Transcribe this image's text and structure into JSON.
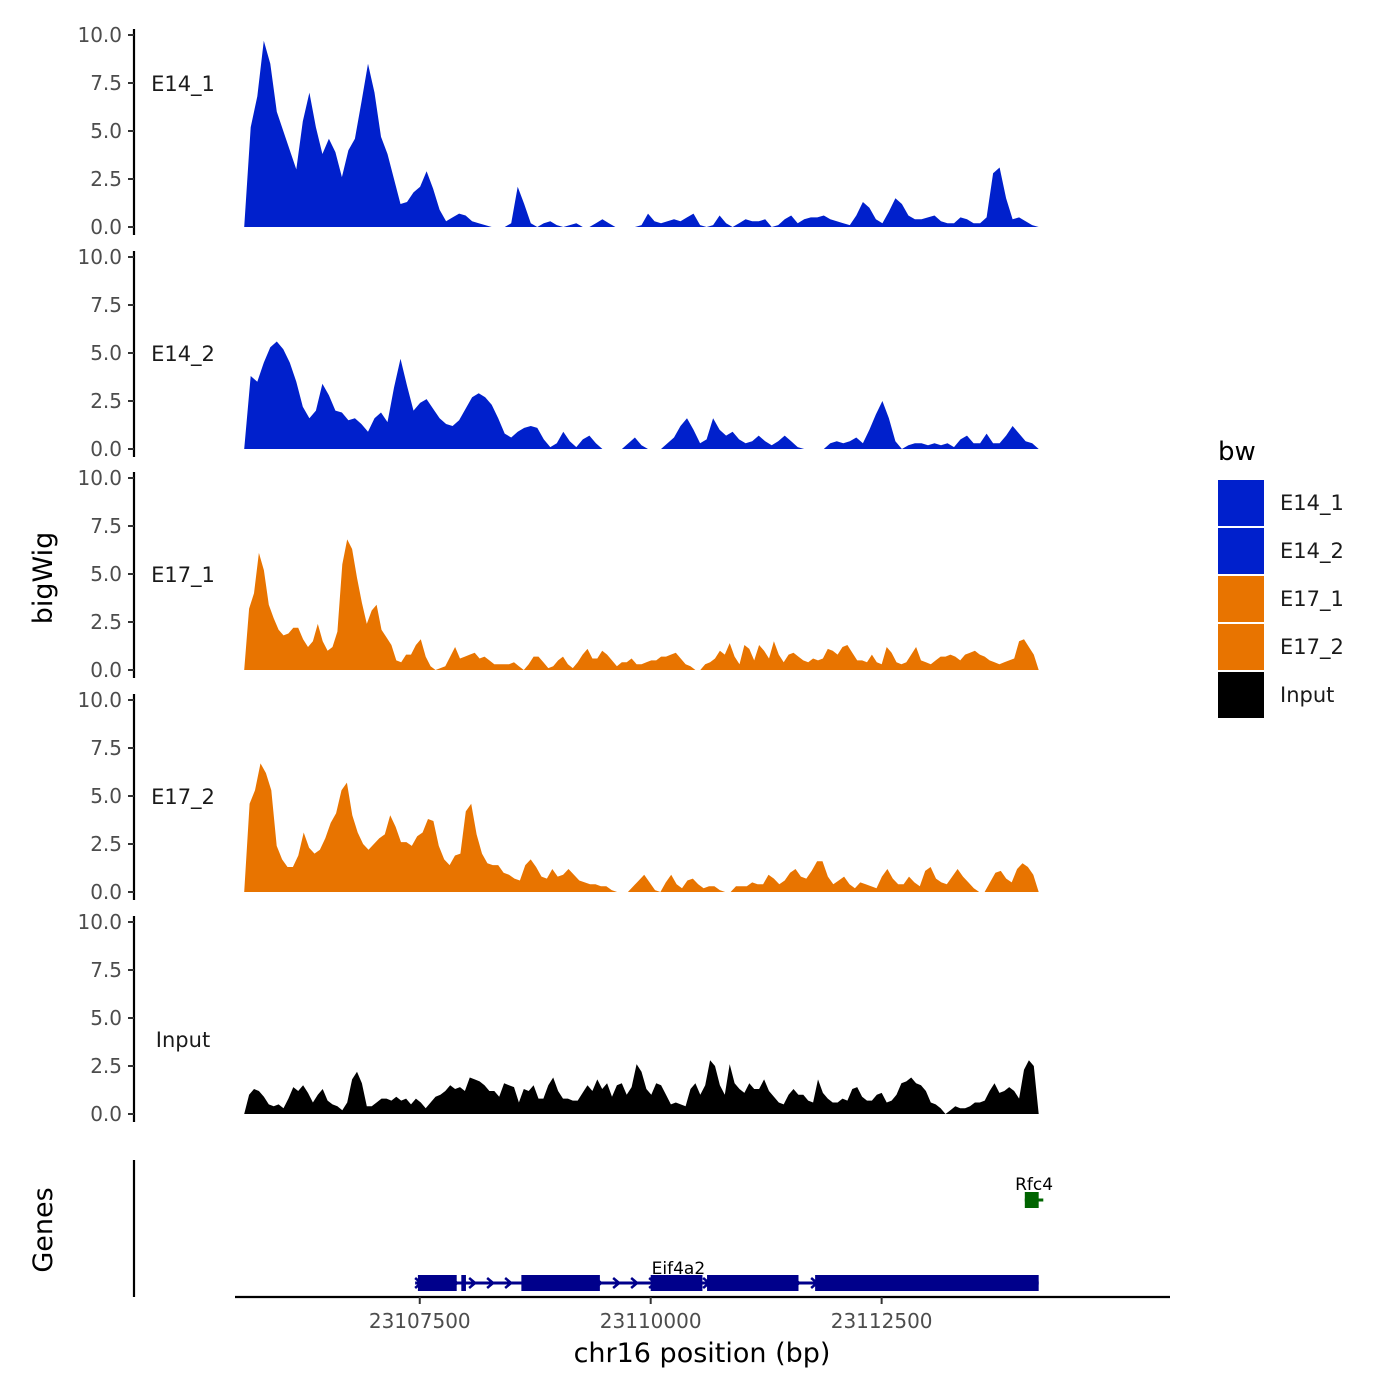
{
  "chart_data": {
    "type": "area",
    "chromosome": "chr16",
    "xlabel": "chr16 position (bp)",
    "ylabel": "bigWig",
    "genes_label": "Genes",
    "xlim": [
      23105500,
      23115600
    ],
    "region": [
      23105600,
      23114200
    ],
    "x_ticks": [
      23107500,
      23110000,
      23112500
    ],
    "x_tick_labels": [
      "23107500",
      "23110000",
      "23112500"
    ],
    "ylim": [
      0,
      10
    ],
    "y_ticks": [
      0,
      2.5,
      5,
      7.5,
      10
    ],
    "y_tick_labels": [
      "0.0",
      "2.5",
      "5.0",
      "7.5",
      "10.0"
    ],
    "legend": {
      "title": "bw",
      "entries": [
        {
          "label": "E14_1",
          "color": "#0020CC"
        },
        {
          "label": "E14_2",
          "color": "#0020CC"
        },
        {
          "label": "E17_1",
          "color": "#E87400"
        },
        {
          "label": "E17_2",
          "color": "#E87400"
        },
        {
          "label": "Input",
          "color": "#000000"
        }
      ]
    },
    "tracks": [
      {
        "name": "E14_1",
        "color": "#0020CC",
        "values": [
          0,
          5.2,
          6.8,
          9.7,
          8.5,
          6.0,
          5.0,
          4.0,
          3.0,
          5.5,
          7.0,
          5.2,
          3.8,
          4.6,
          3.9,
          2.6,
          4.0,
          4.6,
          6.5,
          8.5,
          7.0,
          4.7,
          3.8,
          2.5,
          1.2,
          1.3,
          1.8,
          2.1,
          2.9,
          2.0,
          0.9,
          0.3,
          0.5,
          0.7,
          0.6,
          0.3,
          0.2,
          0.1,
          0,
          0,
          0,
          0.2,
          2.1,
          1.2,
          0.2,
          0,
          0.2,
          0.3,
          0.1,
          0,
          0.1,
          0.2,
          0,
          0,
          0.2,
          0.4,
          0.2,
          0,
          0,
          0,
          0,
          0.1,
          0.7,
          0.3,
          0.2,
          0.3,
          0.4,
          0.3,
          0.5,
          0.7,
          0.1,
          0,
          0.1,
          0.6,
          0.2,
          0,
          0.2,
          0.4,
          0.3,
          0.3,
          0.4,
          0,
          0.1,
          0.4,
          0.6,
          0.2,
          0.4,
          0.5,
          0.5,
          0.6,
          0.4,
          0.3,
          0.2,
          0.1,
          0.6,
          1.3,
          1.0,
          0.4,
          0.2,
          0.8,
          1.5,
          1.2,
          0.6,
          0.4,
          0.4,
          0.5,
          0.6,
          0.3,
          0.2,
          0.2,
          0.5,
          0.4,
          0.2,
          0.2,
          0.5,
          2.8,
          3.1,
          1.5,
          0.4,
          0.5,
          0.3,
          0.1,
          0
        ],
        "label_pos": 7.5
      },
      {
        "name": "E14_2",
        "color": "#0020CC",
        "values": [
          0,
          3.8,
          3.5,
          4.5,
          5.3,
          5.6,
          5.2,
          4.5,
          3.5,
          2.2,
          1.6,
          2.0,
          3.4,
          2.8,
          2.0,
          1.9,
          1.5,
          1.6,
          1.3,
          0.9,
          1.6,
          1.9,
          1.4,
          3.2,
          4.7,
          3.3,
          2.0,
          2.4,
          2.6,
          2.1,
          1.6,
          1.3,
          1.2,
          1.5,
          2.1,
          2.7,
          2.9,
          2.7,
          2.3,
          1.6,
          0.8,
          0.6,
          0.9,
          1.1,
          1.2,
          1.1,
          0.5,
          0.1,
          0.3,
          0.9,
          0.4,
          0.1,
          0.5,
          0.7,
          0.3,
          0,
          0,
          0,
          0,
          0.3,
          0.6,
          0.2,
          0,
          0,
          0,
          0.3,
          0.6,
          1.2,
          1.6,
          1.0,
          0.3,
          0.5,
          1.6,
          1.0,
          0.7,
          0.9,
          0.5,
          0.3,
          0.4,
          0.7,
          0.4,
          0.2,
          0.4,
          0.7,
          0.4,
          0.1,
          0,
          0,
          0,
          0,
          0.3,
          0.4,
          0.3,
          0.4,
          0.6,
          0.3,
          1.0,
          1.8,
          2.5,
          1.6,
          0.4,
          0,
          0.2,
          0.3,
          0.3,
          0.2,
          0.3,
          0.2,
          0.3,
          0.1,
          0.5,
          0.7,
          0.3,
          0.3,
          0.8,
          0.3,
          0.3,
          0.7,
          1.2,
          0.8,
          0.4,
          0.3,
          0
        ],
        "label_pos": 5.0
      },
      {
        "name": "E17_1",
        "color": "#E87400",
        "values": [
          0,
          3.2,
          4.0,
          6.1,
          5.2,
          3.4,
          2.7,
          2.1,
          1.8,
          1.9,
          2.2,
          2.2,
          1.6,
          1.2,
          1.5,
          2.4,
          1.5,
          1.0,
          1.2,
          2.0,
          5.5,
          6.8,
          6.3,
          4.8,
          3.5,
          2.4,
          3.1,
          3.4,
          2.1,
          1.7,
          1.3,
          0.5,
          0.4,
          0.8,
          0.8,
          1.3,
          1.6,
          0.7,
          0.2,
          0,
          0.1,
          0.2,
          0.7,
          1.2,
          0.6,
          0.7,
          0.8,
          0.9,
          0.6,
          0.7,
          0.5,
          0.3,
          0.3,
          0.3,
          0.3,
          0.4,
          0.2,
          0,
          0.3,
          0.7,
          0.7,
          0.4,
          0.1,
          0.2,
          0.5,
          0.7,
          0.3,
          0.1,
          0.4,
          0.8,
          1.1,
          0.6,
          0.6,
          1.0,
          0.8,
          0.5,
          0.2,
          0.4,
          0.4,
          0.6,
          0.3,
          0.3,
          0.4,
          0.5,
          0.5,
          0.7,
          0.7,
          0.8,
          0.9,
          0.6,
          0.3,
          0.2,
          0,
          0,
          0.3,
          0.4,
          0.6,
          1.0,
          0.8,
          1.4,
          0.7,
          0.3,
          1.3,
          1.1,
          0.5,
          1.3,
          1.0,
          0.6,
          1.5,
          0.8,
          0.4,
          0.8,
          0.9,
          0.7,
          0.5,
          0.4,
          0.6,
          0.5,
          0.6,
          1.1,
          1.0,
          0.8,
          1.2,
          1.3,
          0.9,
          0.5,
          0.5,
          0.4,
          0.8,
          0.4,
          0.3,
          1.2,
          0.9,
          0.4,
          0.3,
          0.4,
          0.8,
          1.2,
          0.5,
          0.4,
          0.3,
          0.5,
          0.7,
          0.7,
          0.8,
          0.7,
          0.5,
          0.8,
          0.9,
          1.0,
          0.8,
          0.7,
          0.5,
          0.4,
          0.3,
          0.4,
          0.5,
          0.6,
          1.5,
          1.6,
          1.2,
          0.8,
          0
        ],
        "label_pos": 5.0
      },
      {
        "name": "E17_2",
        "color": "#E87400",
        "values": [
          0,
          4.6,
          5.3,
          6.7,
          6.2,
          5.3,
          2.4,
          1.7,
          1.3,
          1.3,
          1.9,
          3.1,
          2.3,
          2.0,
          2.2,
          2.8,
          3.6,
          4.1,
          5.3,
          5.7,
          4.0,
          3.1,
          2.5,
          2.2,
          2.5,
          2.8,
          3.0,
          4.0,
          3.4,
          2.6,
          2.6,
          2.4,
          2.9,
          3.1,
          3.8,
          3.7,
          2.4,
          1.7,
          1.4,
          1.9,
          2.0,
          4.2,
          4.6,
          3.0,
          2.0,
          1.5,
          1.4,
          1.4,
          1.0,
          0.9,
          0.7,
          0.6,
          1.4,
          1.7,
          1.3,
          0.8,
          0.7,
          1.2,
          0.8,
          0.9,
          1.2,
          0.9,
          0.6,
          0.5,
          0.4,
          0.4,
          0.3,
          0.3,
          0.1,
          0,
          0,
          0,
          0.3,
          0.6,
          0.9,
          0.5,
          0.1,
          0,
          0.5,
          0.9,
          0.4,
          0.2,
          0.6,
          0.7,
          0.4,
          0.2,
          0.3,
          0.3,
          0.1,
          0,
          0,
          0.3,
          0.3,
          0.3,
          0.5,
          0.4,
          0.4,
          0.9,
          0.7,
          0.4,
          0.6,
          1.0,
          1.2,
          0.8,
          0.7,
          1.1,
          1.6,
          1.6,
          0.8,
          0.4,
          0.6,
          0.8,
          0.4,
          0.2,
          0.5,
          0.4,
          0.3,
          0.2,
          0.8,
          1.2,
          0.7,
          0.4,
          0.4,
          0.8,
          0.5,
          0.3,
          1.1,
          1.3,
          0.7,
          0.5,
          0.4,
          0.8,
          1.2,
          0.8,
          0.5,
          0.2,
          0,
          0,
          0.5,
          1.0,
          1.1,
          0.7,
          0.5,
          1.2,
          1.5,
          1.3,
          0.9,
          0
        ],
        "label_pos": 5.0
      },
      {
        "name": "Input",
        "color": "#000000",
        "values": [
          0,
          1.0,
          1.3,
          1.2,
          0.9,
          0.5,
          0.4,
          0.5,
          0.3,
          0.8,
          1.4,
          1.2,
          1.5,
          1.1,
          0.6,
          1.0,
          1.3,
          0.7,
          0.5,
          0.4,
          0.2,
          0.6,
          1.8,
          2.2,
          1.6,
          0.4,
          0.4,
          0.6,
          0.8,
          0.8,
          0.7,
          0.9,
          0.7,
          0.8,
          0.5,
          0.8,
          0.6,
          0.3,
          0.6,
          0.9,
          1.0,
          1.2,
          1.5,
          1.3,
          1.4,
          1.2,
          1.9,
          1.8,
          1.7,
          1.5,
          1.2,
          1.2,
          0.9,
          1.6,
          1.5,
          1.4,
          0.6,
          1.3,
          1.2,
          1.5,
          0.8,
          0.8,
          1.5,
          1.9,
          1.2,
          0.8,
          0.8,
          0.7,
          0.7,
          1.1,
          1.5,
          1.2,
          1.8,
          1.3,
          1.6,
          0.9,
          1.5,
          1.6,
          1.0,
          1.4,
          2.6,
          2.2,
          1.3,
          1.0,
          1.6,
          1.5,
          1.0,
          0.5,
          0.6,
          0.5,
          0.4,
          1.3,
          1.6,
          1.0,
          1.5,
          2.8,
          2.5,
          1.5,
          1.0,
          2.6,
          1.6,
          1.3,
          1.1,
          1.6,
          1.3,
          1.3,
          1.8,
          1.2,
          0.9,
          0.6,
          0.5,
          1.0,
          1.3,
          1.0,
          1.0,
          0.7,
          0.6,
          1.8,
          1.1,
          0.8,
          0.6,
          0.6,
          0.8,
          0.7,
          1.3,
          1.4,
          0.9,
          0.7,
          0.7,
          1.0,
          1.1,
          0.6,
          0.7,
          1.0,
          1.6,
          1.7,
          1.9,
          1.6,
          1.5,
          1.2,
          0.6,
          0.5,
          0.3,
          0,
          0.2,
          0.4,
          0.3,
          0.3,
          0.4,
          0.6,
          0.6,
          0.7,
          1.2,
          1.6,
          1.1,
          1.2,
          1.4,
          1.2,
          0.8,
          2.3,
          2.8,
          2.5,
          0
        ],
        "label_pos": 3.9
      }
    ],
    "genes": [
      {
        "name": "Eif4a2",
        "strand": "+",
        "color": "#00008B",
        "start": 23107450,
        "end": 23114200,
        "exons": [
          [
            23107480,
            23107900
          ],
          [
            23107950,
            23108000
          ],
          [
            23108600,
            23109450
          ],
          [
            23110000,
            23110560
          ],
          [
            23110610,
            23111600
          ],
          [
            23111780,
            23114200
          ]
        ]
      },
      {
        "name": "Rfc4",
        "strand": "-",
        "color": "#006400",
        "start": 23114050,
        "end": 23114250,
        "exons": [
          [
            23114050,
            23114200
          ]
        ]
      }
    ]
  }
}
